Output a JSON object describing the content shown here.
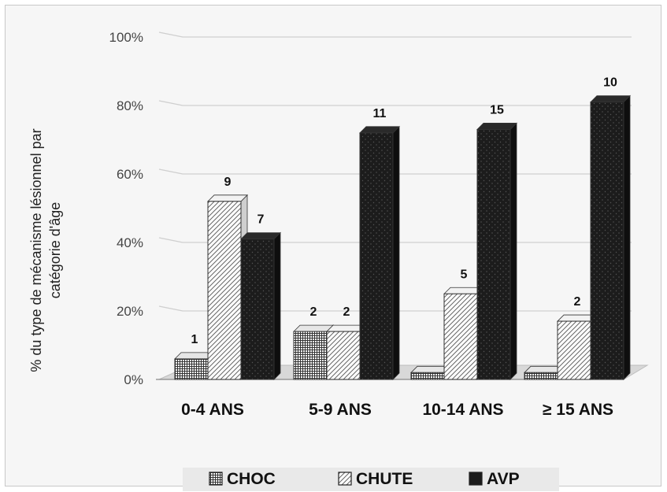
{
  "chart_data": {
    "type": "bar",
    "categories": [
      "0-4 ANS",
      "5-9 ANS",
      "10-14 ANS",
      "≥ 15 ANS"
    ],
    "series": [
      {
        "name": "CHOC",
        "values": [
          6,
          14,
          2,
          2
        ],
        "labels": [
          "1",
          "2",
          "",
          ""
        ]
      },
      {
        "name": "CHUTE",
        "values": [
          52,
          14,
          25,
          17
        ],
        "labels": [
          "9",
          "2",
          "5",
          "2"
        ]
      },
      {
        "name": "AVP",
        "values": [
          41,
          72,
          73,
          81
        ],
        "labels": [
          "7",
          "11",
          "15",
          "10"
        ]
      }
    ],
    "ylabel_lines": [
      "% du type de mécanisme lésionnel par",
      "catégorie d'âge"
    ],
    "ylim": [
      0,
      100
    ],
    "yticks": [
      "0%",
      "20%",
      "40%",
      "60%",
      "80%",
      "100%"
    ],
    "grid": true,
    "legend_placement": "bottom",
    "colors": {
      "choc": "#ffffff",
      "chute": "#ffffff",
      "avp": "#1c1c1c",
      "grid": "#cfcfcf"
    }
  }
}
